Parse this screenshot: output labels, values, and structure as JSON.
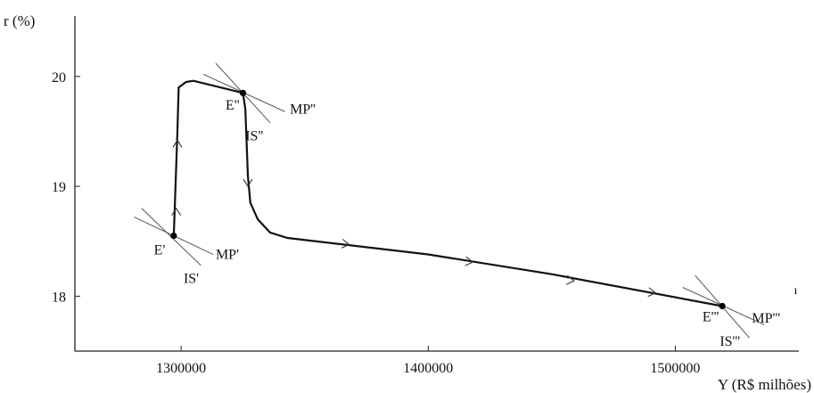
{
  "chart_data": {
    "type": "line",
    "title": "",
    "xlabel": "Y (R$ milhões)",
    "ylabel": "r (%)",
    "xlim": [
      1257000,
      1550000
    ],
    "ylim": [
      17.5,
      20.55
    ],
    "x_ticks": [
      {
        "value": 1300000,
        "label": "1300000"
      },
      {
        "value": 1400000,
        "label": "1400000"
      },
      {
        "value": 1500000,
        "label": "1500000"
      }
    ],
    "y_ticks": [
      {
        "value": 18,
        "label": "18"
      },
      {
        "value": 19,
        "label": "19"
      },
      {
        "value": 20,
        "label": "20"
      }
    ],
    "series": [
      {
        "values": [
          {
            "x": 1297000,
            "y": 18.55
          },
          {
            "x": 1298500,
            "y": 19.5
          },
          {
            "x": 1299000,
            "y": 19.9
          },
          {
            "x": 1302000,
            "y": 19.95
          },
          {
            "x": 1305000,
            "y": 19.96
          },
          {
            "x": 1325000,
            "y": 19.85
          },
          {
            "x": 1326000,
            "y": 19.7
          },
          {
            "x": 1327000,
            "y": 19.1
          },
          {
            "x": 1328000,
            "y": 18.85
          },
          {
            "x": 1331000,
            "y": 18.7
          },
          {
            "x": 1336000,
            "y": 18.58
          },
          {
            "x": 1343000,
            "y": 18.53
          },
          {
            "x": 1400000,
            "y": 18.38
          },
          {
            "x": 1450000,
            "y": 18.2
          },
          {
            "x": 1519000,
            "y": 17.91
          }
        ],
        "direction_arrows": [
          {
            "x": 1298000,
            "y": 18.8,
            "direction": "up"
          },
          {
            "x": 1298500,
            "y": 19.42,
            "direction": "up"
          },
          {
            "x": 1327000,
            "y": 19.0,
            "direction": "down"
          },
          {
            "x": 1368000,
            "y": 18.47,
            "direction": "right"
          },
          {
            "x": 1418000,
            "y": 18.31,
            "direction": "right"
          },
          {
            "x": 1459000,
            "y": 18.14,
            "direction": "right"
          },
          {
            "x": 1492000,
            "y": 18.03,
            "direction": "right"
          }
        ]
      }
    ],
    "points": [
      {
        "label": "E'",
        "x": 1297000,
        "y": 18.55
      },
      {
        "label": "E''",
        "x": 1325000,
        "y": 19.85
      },
      {
        "label": "E'''",
        "x": 1519000,
        "y": 17.91
      }
    ],
    "curves": [
      {
        "label": "MP'",
        "from": {
          "x": 1281000,
          "y": 18.72
        },
        "to": {
          "x": 1313000,
          "y": 18.38
        }
      },
      {
        "label": "IS'",
        "from": {
          "x": 1284000,
          "y": 18.8
        },
        "to": {
          "x": 1308000,
          "y": 18.28
        }
      },
      {
        "label": "MP''",
        "from": {
          "x": 1309000,
          "y": 20.02
        },
        "to": {
          "x": 1342000,
          "y": 19.68
        }
      },
      {
        "label": "IS''",
        "from": {
          "x": 1314000,
          "y": 20.12
        },
        "to": {
          "x": 1336000,
          "y": 19.58
        }
      },
      {
        "label": "MP'''",
        "from": {
          "x": 1503000,
          "y": 18.08
        },
        "to": {
          "x": 1536000,
          "y": 17.74
        }
      },
      {
        "label": "IS'''",
        "from": {
          "x": 1508000,
          "y": 18.19
        },
        "to": {
          "x": 1530000,
          "y": 17.62
        }
      }
    ],
    "curve_labels": [
      {
        "text": "MP'",
        "x": 1314000,
        "y": 18.34
      },
      {
        "text": "IS'",
        "x": 1301000,
        "y": 18.12
      },
      {
        "text": "MP''",
        "x": 1344000,
        "y": 19.66
      },
      {
        "text": "IS''",
        "x": 1326000,
        "y": 19.42
      },
      {
        "text": "MP'''",
        "x": 1531000,
        "y": 17.76
      },
      {
        "text": "IS'''",
        "x": 1518000,
        "y": 17.55
      }
    ],
    "point_labels": [
      {
        "text": "E'",
        "x": 1289000,
        "y": 18.38
      },
      {
        "text": "E''",
        "x": 1318000,
        "y": 19.7
      },
      {
        "text": "E'''",
        "x": 1511000,
        "y": 17.77
      }
    ],
    "extra_marks": [
      {
        "text": "ı",
        "x": 1548000,
        "y": 18.02
      }
    ],
    "grid": false,
    "legend": "none"
  }
}
